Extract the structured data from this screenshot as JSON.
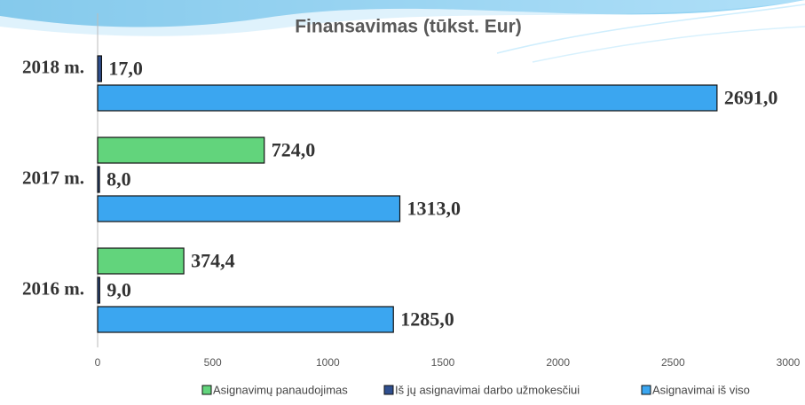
{
  "chart_data": {
    "type": "hbar",
    "title": "Finansavimas (tūkst. Eur)",
    "categories": [
      "2016 m.",
      "2017 m.",
      "2018 m."
    ],
    "series": [
      {
        "name": "Asignavimų panaudojimas",
        "color": "#62d47c",
        "values": [
          374.4,
          724.0,
          null
        ],
        "value_labels": [
          "374,4",
          "724,0",
          null
        ]
      },
      {
        "name": "Iš jų asignavimai darbo užmokesčiui",
        "color": "#2f4f8f",
        "values": [
          9.0,
          8.0,
          17.0
        ],
        "value_labels": [
          "9,0",
          "8,0",
          "17,0"
        ]
      },
      {
        "name": "Asignavimai iš viso",
        "color": "#3ba6f0",
        "values": [
          1285.0,
          1313.0,
          2691.0
        ],
        "value_labels": [
          "1285,0",
          "1313,0",
          "2691,0"
        ]
      }
    ],
    "xlim": [
      0,
      3000
    ],
    "xticks": [
      0,
      500,
      1000,
      1500,
      2000,
      2500,
      3000
    ],
    "grid": false
  }
}
